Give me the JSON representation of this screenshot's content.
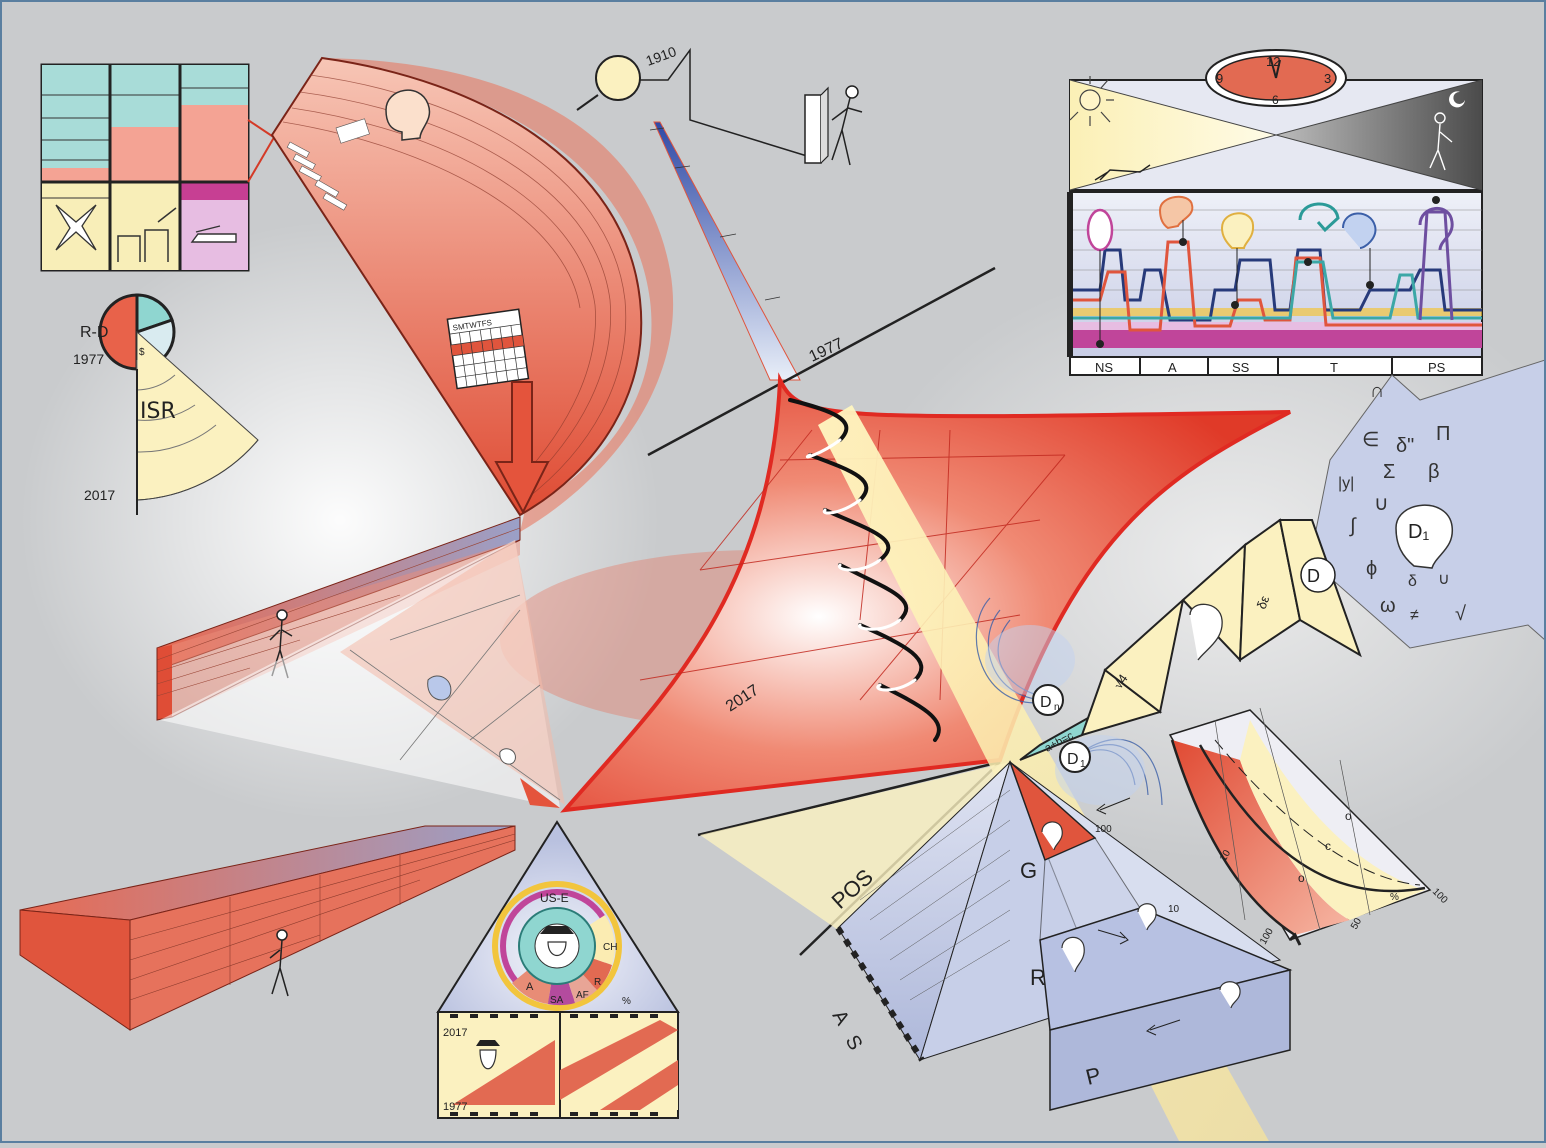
{
  "years": {
    "y1910": "1910",
    "y1977": "1977",
    "y2017": "2017"
  },
  "left_panel": {
    "rd_label": "R-D",
    "rd_year": "1977",
    "dollar": "$",
    "isr_label": "ISR",
    "end_year": "2017",
    "calendar_days": "SMTWTFS"
  },
  "funnel": {
    "year_1977": "1977",
    "year_2017": "2017"
  },
  "triangle": {
    "usE": "US-E",
    "ch": "CH",
    "a": "A",
    "sa": "SA",
    "af": "AF",
    "r": "R",
    "pct": "%",
    "film_top": "2017",
    "film_bottom": "1977"
  },
  "clock": {
    "n12": "12",
    "n3": "3",
    "n6": "6",
    "n9": "9"
  },
  "timeline": {
    "columns": [
      "NS",
      "A",
      "SS",
      "T",
      "PS"
    ]
  },
  "math_cloud": {
    "symbols": [
      "∩",
      "∈",
      "δ\"",
      "Π",
      "|y|",
      "Σ",
      "β",
      "∪",
      "∫",
      "D₁",
      "ϕ",
      "δ",
      "∪",
      "ω",
      "≠",
      "√"
    ]
  },
  "chain": {
    "d_top": "D",
    "d_sub": "n",
    "d1": "D",
    "d1_sub": "1",
    "abc": "a+b=c",
    "eq1": "√4",
    "eq2": "δε",
    "d_end": "D"
  },
  "pyramid": {
    "pos": "POS",
    "g": "G",
    "r": "R",
    "p": "P",
    "a": "A",
    "s": "S",
    "n100": "100",
    "n10": "10"
  },
  "curve_chart": {
    "t10": "10",
    "t50": "50",
    "t100a": "100",
    "t100b": "100",
    "pct": "%",
    "o1": "o",
    "o2": "o",
    "c": "c"
  },
  "colors": {
    "red": "#e2523a",
    "teal": "#7fd0cc",
    "cream": "#fbf3c6",
    "magenta": "#c0459a",
    "navy": "#273a7a",
    "bg": "#c9cbcd"
  }
}
